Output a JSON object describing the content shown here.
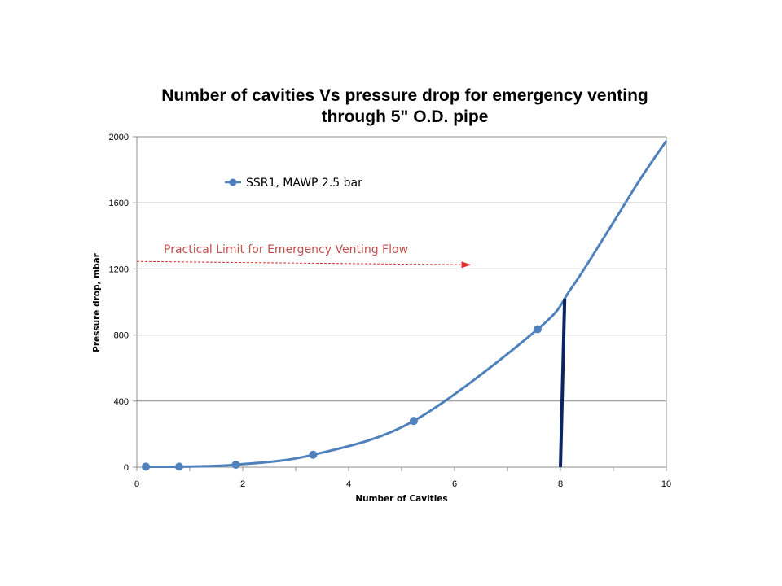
{
  "chart_data": {
    "type": "line",
    "title_lines": [
      "Number of cavities Vs pressure drop for emergency venting",
      "through 5\" O.D. pipe"
    ],
    "xlabel": "Number of Cavities",
    "ylabel": "Pressure drop, mbar",
    "xlim": [
      0,
      10
    ],
    "ylim": [
      0,
      2000
    ],
    "x_ticks": [
      0,
      2,
      4,
      6,
      8,
      10
    ],
    "y_ticks": [
      0,
      400,
      800,
      1200,
      1600,
      2000
    ],
    "grid": "horizontal",
    "legend_position": "top-left",
    "series": [
      {
        "name": "SSR1, MAWP 2.5 bar",
        "color": "#4f81bd",
        "markers": [
          {
            "x": 0.17,
            "y": 3
          },
          {
            "x": 0.8,
            "y": 3
          },
          {
            "x": 1.87,
            "y": 15
          },
          {
            "x": 3.33,
            "y": 75
          },
          {
            "x": 5.23,
            "y": 280
          },
          {
            "x": 7.57,
            "y": 835
          }
        ],
        "curve": [
          {
            "x": 0.17,
            "y": 3
          },
          {
            "x": 0.8,
            "y": 3
          },
          {
            "x": 1.87,
            "y": 15
          },
          {
            "x": 3.33,
            "y": 75
          },
          {
            "x": 5.23,
            "y": 280
          },
          {
            "x": 7.57,
            "y": 835
          },
          {
            "x": 8.2,
            "y": 1080
          },
          {
            "x": 8.9,
            "y": 1430
          },
          {
            "x": 9.5,
            "y": 1740
          },
          {
            "x": 10.0,
            "y": 1975
          }
        ]
      }
    ],
    "annotations": [
      {
        "text": "Practical Limit for Emergency Venting Flow",
        "color": "#c0504d",
        "arrow": {
          "x1": 0.0,
          "y1": 1245,
          "x2": 6.3,
          "y2": 1225
        }
      }
    ],
    "marker_line": {
      "color": "#0c2461",
      "x1": 8.0,
      "y1": 0,
      "x2": 8.08,
      "y2": 1020
    }
  }
}
